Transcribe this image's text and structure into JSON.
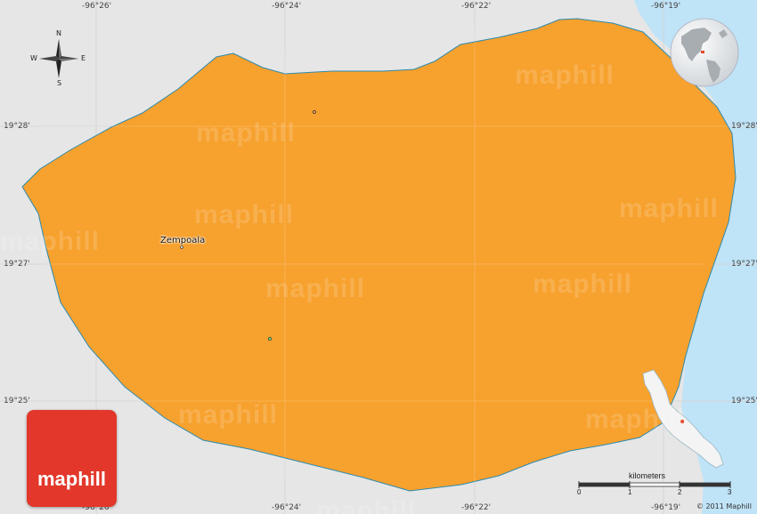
{
  "map": {
    "place_label": "Zempoala",
    "longitude_labels": [
      "-96°26'",
      "-96°24'",
      "-96°22'",
      "-96°19'"
    ],
    "latitude_labels": [
      "19°28'",
      "19°27'",
      "19°25'"
    ],
    "watermark_text": "maphill",
    "colors": {
      "region_fill": "#f7a12e",
      "region_border": "#2b8bb0",
      "sea": "#bfe3f7",
      "background": "#e6e6e6",
      "brand_red": "#e2372a"
    }
  },
  "compass": {
    "north": "N",
    "south": "S",
    "east": "E",
    "west": "W"
  },
  "logo": {
    "text": "maphill"
  },
  "scale": {
    "unit_label": "kilometers",
    "ticks": [
      "0",
      "1",
      "2",
      "3"
    ]
  },
  "copyright": "© 2011 Maphill",
  "icons": [
    "compass-rose-icon",
    "globe-locator-icon",
    "map-pin-icon"
  ]
}
